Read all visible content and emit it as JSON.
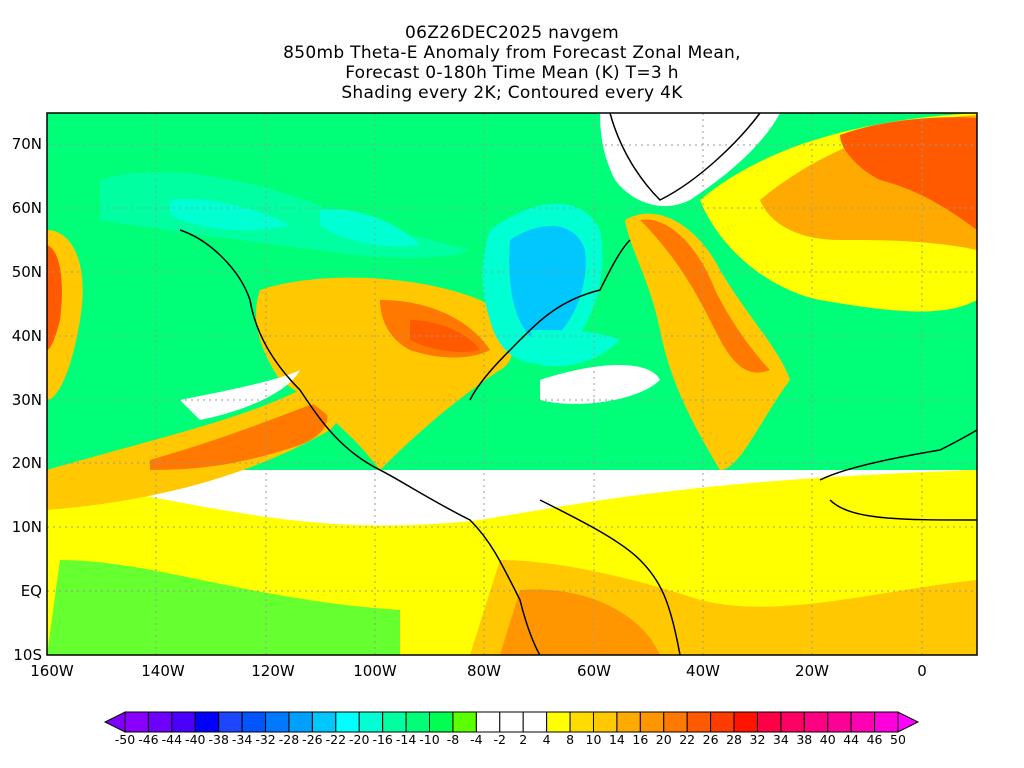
{
  "title": {
    "line1": "06Z26DEC2025 navgem",
    "line2": "850mb Theta-E Anomaly from Forecast Zonal Mean,",
    "line3": "Forecast 0-180h Time Mean (K) T=3 h",
    "line4": "Shading every 2K; Contoured every 4K"
  },
  "axes": {
    "lat_labels": [
      "70N",
      "60N",
      "50N",
      "40N",
      "30N",
      "20N",
      "10N",
      "EQ",
      "10S"
    ],
    "lon_labels": [
      "160W",
      "140W",
      "120W",
      "100W",
      "80W",
      "60W",
      "40W",
      "20W",
      "0"
    ]
  },
  "colorbar": {
    "labels": [
      "-50",
      "-46",
      "-44",
      "-40",
      "-38",
      "-34",
      "-32",
      "-28",
      "-26",
      "-22",
      "-20",
      "-16",
      "-14",
      "-10",
      "-8",
      "-4",
      "-2",
      "2",
      "4",
      "8",
      "10",
      "14",
      "16",
      "20",
      "22",
      "26",
      "28",
      "32",
      "34",
      "38",
      "40",
      "44",
      "46",
      "50"
    ],
    "colors": [
      "#8a00ff",
      "#6e00ff",
      "#4b00ff",
      "#0000ff",
      "#1e46ff",
      "#0055ff",
      "#0078ff",
      "#00a0ff",
      "#00c8ff",
      "#00ffff",
      "#00ffd2",
      "#00ffa0",
      "#00ff78",
      "#00ff50",
      "#5aff00",
      "#ffffff",
      "#ffffff",
      "#ffffff",
      "#ffff00",
      "#ffdc00",
      "#ffc800",
      "#ffaa00",
      "#ff9600",
      "#ff7800",
      "#ff5a00",
      "#ff3c00",
      "#ff1400",
      "#ff0046",
      "#ff0064",
      "#ff0082",
      "#ff0096",
      "#ff00b4",
      "#ff00dc"
    ],
    "under_color": "#8000ff",
    "over_color": "#ff00ff"
  }
}
